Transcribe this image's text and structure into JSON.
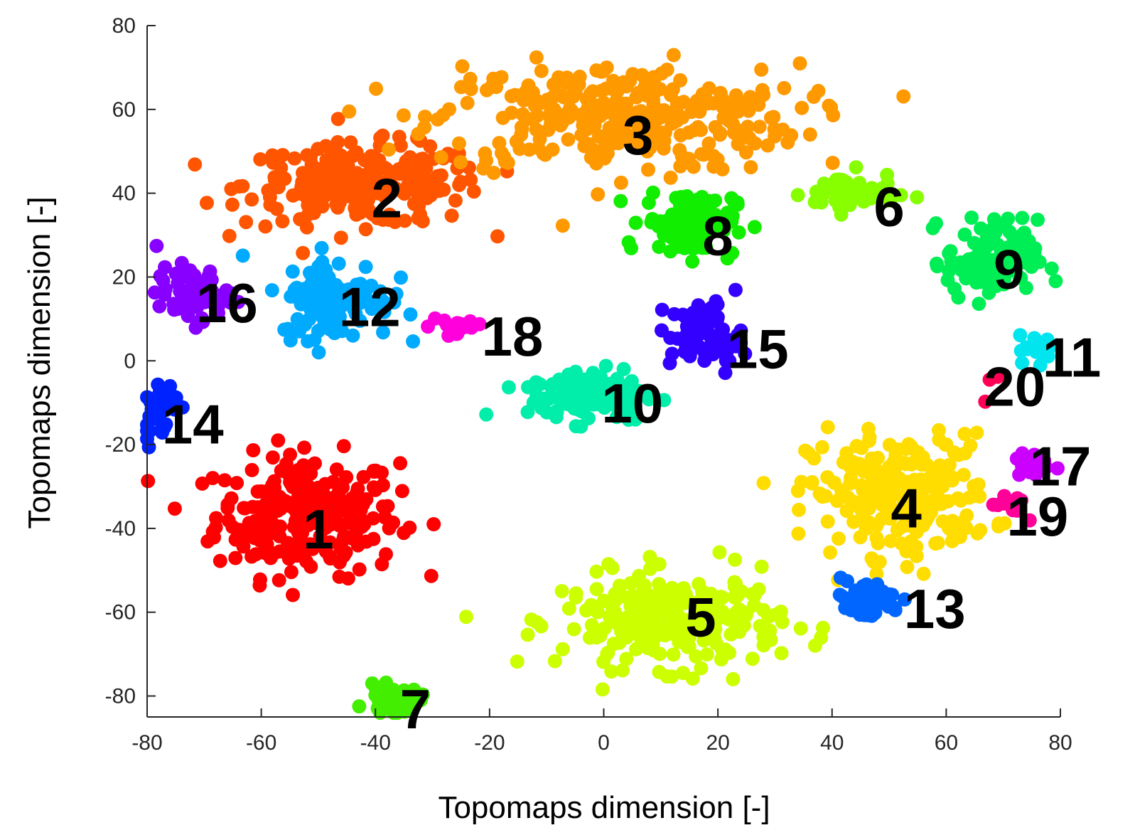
{
  "chart_data": {
    "type": "scatter",
    "title": "",
    "xlabel": "Topomaps dimension [-]",
    "ylabel": "Topomaps dimension [-]",
    "xlim": [
      -80,
      80
    ],
    "ylim": [
      -85,
      80
    ],
    "xticks": [
      -80,
      -60,
      -40,
      -20,
      0,
      20,
      40,
      60,
      80
    ],
    "yticks": [
      -80,
      -60,
      -40,
      -20,
      0,
      20,
      40,
      60,
      80
    ],
    "xtick_labels": [
      "-80",
      "-60",
      "-40",
      "-20",
      "0",
      "20",
      "40",
      "60",
      "80"
    ],
    "ytick_labels": [
      "-80",
      "-60",
      "-40",
      "-20",
      "0",
      "20",
      "40",
      "60",
      "80"
    ],
    "grid": false,
    "clusters": [
      {
        "label": "1",
        "color": "#ff0000",
        "center": [
          -52,
          -37
        ],
        "spread": [
          10,
          9
        ],
        "n": 260
      },
      {
        "label": "2",
        "color": "#ff5500",
        "center": [
          -42,
          42
        ],
        "spread": [
          13,
          6
        ],
        "n": 240
      },
      {
        "label": "3",
        "color": "#ff9900",
        "center": [
          2,
          58
        ],
        "spread": [
          20,
          8
        ],
        "n": 320
      },
      {
        "label": "4",
        "color": "#ffdd00",
        "center": [
          52,
          -32
        ],
        "spread": [
          10,
          9
        ],
        "n": 240
      },
      {
        "label": "5",
        "color": "#ccff00",
        "center": [
          12,
          -62
        ],
        "spread": [
          12,
          7
        ],
        "n": 240
      },
      {
        "label": "6",
        "color": "#88ff00",
        "center": [
          43,
          40
        ],
        "spread": [
          5,
          3
        ],
        "n": 60
      },
      {
        "label": "7",
        "color": "#44ee00",
        "center": [
          -37,
          -81
        ],
        "spread": [
          3,
          2
        ],
        "n": 45
      },
      {
        "label": "8",
        "color": "#11ee00",
        "center": [
          15,
          33
        ],
        "spread": [
          5,
          5
        ],
        "n": 110
      },
      {
        "label": "9",
        "color": "#00ee55",
        "center": [
          68,
          24
        ],
        "spread": [
          5,
          6
        ],
        "n": 110
      },
      {
        "label": "10",
        "color": "#00eeaa",
        "center": [
          -2,
          -8
        ],
        "spread": [
          7,
          4
        ],
        "n": 130
      },
      {
        "label": "11",
        "color": "#00e5ee",
        "center": [
          76,
          3
        ],
        "spread": [
          2,
          2
        ],
        "n": 20
      },
      {
        "label": "12",
        "color": "#00aaff",
        "center": [
          -47,
          15
        ],
        "spread": [
          6,
          6
        ],
        "n": 120
      },
      {
        "label": "13",
        "color": "#0066ff",
        "center": [
          46,
          -57
        ],
        "spread": [
          4,
          3
        ],
        "n": 50
      },
      {
        "label": "14",
        "color": "#0022ff",
        "center": [
          -78,
          -11
        ],
        "spread": [
          2,
          4
        ],
        "n": 40
      },
      {
        "label": "15",
        "color": "#3300ff",
        "center": [
          18,
          6
        ],
        "spread": [
          4,
          5
        ],
        "n": 80
      },
      {
        "label": "16",
        "color": "#8800ff",
        "center": [
          -72,
          16
        ],
        "spread": [
          4,
          4
        ],
        "n": 70
      },
      {
        "label": "17",
        "color": "#cc00ff",
        "center": [
          75,
          -25
        ],
        "spread": [
          2,
          2
        ],
        "n": 18
      },
      {
        "label": "18",
        "color": "#ff00dd",
        "center": [
          -26,
          8
        ],
        "spread": [
          3,
          2
        ],
        "n": 18
      },
      {
        "label": "19",
        "color": "#ff0099",
        "center": [
          71,
          -34
        ],
        "spread": [
          2,
          2
        ],
        "n": 14
      },
      {
        "label": "20",
        "color": "#ff0055",
        "center": [
          67,
          -5
        ],
        "spread": [
          1,
          2
        ],
        "n": 3
      }
    ],
    "cluster_labels": [
      {
        "text": "1",
        "x": -50,
        "y": -40
      },
      {
        "text": "2",
        "x": -38,
        "y": 39
      },
      {
        "text": "3",
        "x": 6,
        "y": 54
      },
      {
        "text": "4",
        "x": 53,
        "y": -35
      },
      {
        "text": "5",
        "x": 17,
        "y": -61
      },
      {
        "text": "6",
        "x": 50,
        "y": 37
      },
      {
        "text": "7",
        "x": -33,
        "y": -83
      },
      {
        "text": "8",
        "x": 20,
        "y": 30
      },
      {
        "text": "9",
        "x": 71,
        "y": 22
      },
      {
        "text": "10",
        "x": 5,
        "y": -10
      },
      {
        "text": "11",
        "x": 82,
        "y": 1
      },
      {
        "text": "12",
        "x": -41,
        "y": 13
      },
      {
        "text": "13",
        "x": 58,
        "y": -59
      },
      {
        "text": "14",
        "x": -72,
        "y": -15
      },
      {
        "text": "15",
        "x": 27,
        "y": 3
      },
      {
        "text": "16",
        "x": -66,
        "y": 14
      },
      {
        "text": "17",
        "x": 80,
        "y": -25
      },
      {
        "text": "18",
        "x": -16,
        "y": 6
      },
      {
        "text": "19",
        "x": 76,
        "y": -37
      },
      {
        "text": "20",
        "x": 72,
        "y": -6
      }
    ]
  }
}
